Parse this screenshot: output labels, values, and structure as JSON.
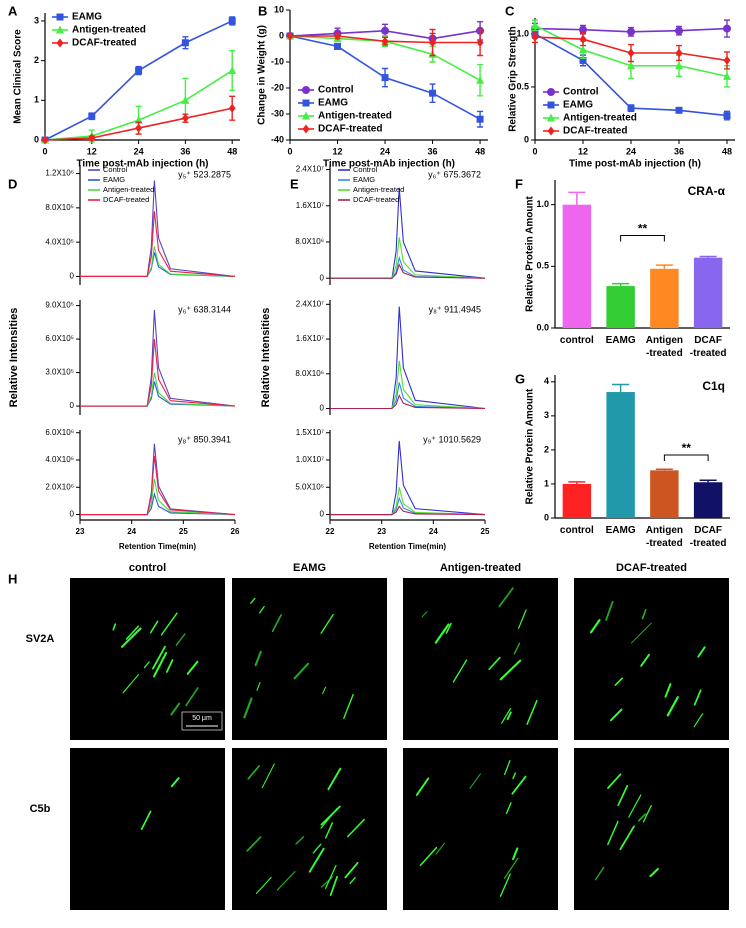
{
  "chart_data": [
    {
      "type": "line",
      "label": "A",
      "ylabel": "Mean Clinical Score",
      "xlabel": "Time post-mAb injection (h)",
      "x": [
        0,
        12,
        24,
        36,
        48
      ],
      "xlim": [
        0,
        50
      ],
      "xticks": [
        0,
        12,
        24,
        36,
        48
      ],
      "ylim": [
        0,
        3.2
      ],
      "yticks": [
        0,
        1,
        2,
        3
      ],
      "legend": "upper left",
      "series": [
        {
          "name": "EAMG",
          "color": "#3355dd",
          "marker": "square",
          "values": [
            0,
            0.6,
            1.75,
            2.45,
            3.0
          ],
          "errors": [
            0,
            0.08,
            0.1,
            0.15,
            0.1
          ]
        },
        {
          "name": "Antigen-treated",
          "color": "#44ee44",
          "marker": "triangle",
          "values": [
            0,
            0.1,
            0.5,
            1.0,
            1.75
          ],
          "errors": [
            0,
            0.15,
            0.35,
            0.55,
            0.5
          ]
        },
        {
          "name": "DCAF-treated",
          "color": "#ee2222",
          "marker": "diamond",
          "values": [
            0,
            0.05,
            0.3,
            0.55,
            0.8
          ],
          "errors": [
            0,
            0.05,
            0.15,
            0.1,
            0.3
          ]
        }
      ]
    },
    {
      "type": "line",
      "label": "B",
      "ylabel": "Change in Weight (g)",
      "xlabel": "Time post-mAb injection (h)",
      "x": [
        0,
        12,
        24,
        36,
        48
      ],
      "xlim": [
        0,
        50
      ],
      "xticks": [
        0,
        12,
        24,
        36,
        48
      ],
      "ylim": [
        -40,
        10
      ],
      "yticks": [
        -40,
        -30,
        -20,
        -10,
        0,
        10
      ],
      "legend": "lower left",
      "series": [
        {
          "name": "Control",
          "color": "#7733cc",
          "marker": "circle",
          "values": [
            0,
            1,
            2,
            -1,
            2
          ],
          "errors": [
            0,
            2,
            2.5,
            2,
            3.5
          ]
        },
        {
          "name": "EAMG",
          "color": "#3355dd",
          "marker": "square",
          "values": [
            0,
            -4,
            -16,
            -22,
            -32
          ],
          "errors": [
            0,
            1,
            3.5,
            3.5,
            3
          ]
        },
        {
          "name": "Antigen-treated",
          "color": "#44ee44",
          "marker": "triangle",
          "values": [
            0,
            -1,
            -2,
            -7,
            -17
          ],
          "errors": [
            0,
            1,
            2,
            3,
            6
          ]
        },
        {
          "name": "DCAF-treated",
          "color": "#ee2222",
          "marker": "diamond",
          "values": [
            0,
            0,
            -2,
            -2.5,
            -2.5
          ],
          "errors": [
            0,
            1,
            1.5,
            5,
            5
          ]
        }
      ]
    },
    {
      "type": "line",
      "label": "C",
      "ylabel": "Relative Grip Strength",
      "xlabel": "Time post-mAb injection (h)",
      "x": [
        0,
        12,
        24,
        36,
        48
      ],
      "xlim": [
        0,
        50
      ],
      "xticks": [
        0,
        12,
        24,
        36,
        48
      ],
      "ylim": [
        0,
        1.15
      ],
      "yticks": [
        0,
        0.5,
        {
          "value": 1,
          "label": "1.0"
        }
      ],
      "legend": "lower left",
      "series": [
        {
          "name": "Control",
          "color": "#7733cc",
          "marker": "circle",
          "values": [
            1.05,
            1.04,
            1.02,
            1.03,
            1.05
          ],
          "errors": [
            0.05,
            0.04,
            0.04,
            0.04,
            0.08
          ]
        },
        {
          "name": "EAMG",
          "color": "#3355dd",
          "marker": "square",
          "values": [
            1.0,
            0.75,
            0.3,
            0.28,
            0.23
          ],
          "errors": [
            0.04,
            0.05,
            0.03,
            0.02,
            0.04
          ]
        },
        {
          "name": "Antigen-treated",
          "color": "#44ee44",
          "marker": "triangle",
          "values": [
            1.08,
            0.85,
            0.7,
            0.7,
            0.6
          ],
          "errors": [
            0.05,
            0.08,
            0.12,
            0.1,
            0.1
          ]
        },
        {
          "name": "DCAF-treated",
          "color": "#ee2222",
          "marker": "diamond",
          "values": [
            0.97,
            0.95,
            0.82,
            0.82,
            0.75
          ],
          "errors": [
            0.05,
            0.06,
            0.08,
            0.07,
            0.08
          ]
        }
      ]
    },
    {
      "type": "line",
      "label": "D",
      "annotation": "y₅⁺ 523.2875",
      "x": [
        23,
        24.3,
        24.38,
        24.44,
        24.52,
        24.75,
        26
      ],
      "xlim": [
        23,
        26
      ],
      "ylim": [
        -100000,
        1300000
      ],
      "yticks": [
        0,
        {
          "value": 400000,
          "label": "4.0X10⁵"
        },
        {
          "value": 800000,
          "label": "8.0X10⁵"
        },
        {
          "value": 1200000,
          "label": "1.2X10⁶"
        }
      ],
      "legend": "upper left",
      "series": [
        {
          "name": "Control",
          "color": "#6040c0",
          "values": [
            0,
            0,
            336000,
            1120000,
            448000,
            89600,
            0
          ]
        },
        {
          "name": "EAMG",
          "color": "#3355dd",
          "values": [
            0,
            0,
            84000,
            280000,
            112000,
            22400,
            0
          ]
        },
        {
          "name": "Antigen-treated",
          "color": "#44dd44",
          "values": [
            0,
            0,
            105000,
            350000,
            140000,
            28000,
            0
          ]
        },
        {
          "name": "DCAF-treated",
          "color": "#ee2244",
          "values": [
            0,
            0,
            228000,
            760000,
            304000,
            60800,
            0
          ]
        }
      ]
    },
    {
      "type": "line",
      "ylabel": "Relative Intensities",
      "annotation": "y₆⁺ 638.3144",
      "x": [
        23,
        24.3,
        24.38,
        24.44,
        24.52,
        24.75,
        26
      ],
      "xlim": [
        23,
        26
      ],
      "ylim": [
        -80000,
        950000
      ],
      "yticks": [
        0,
        {
          "value": 300000,
          "label": "3.0X10⁵"
        },
        {
          "value": 600000,
          "label": "6.0X10⁵"
        },
        {
          "value": 900000,
          "label": "9.0X10⁵"
        }
      ],
      "series": [
        {
          "color": "#6040c0",
          "values": [
            0,
            0,
            258000,
            860000,
            344000,
            68800,
            0
          ]
        },
        {
          "color": "#3355dd",
          "values": [
            0,
            0,
            66000,
            220000,
            88000,
            17600,
            0
          ]
        },
        {
          "color": "#44dd44",
          "values": [
            0,
            0,
            90000,
            300000,
            120000,
            24000,
            0
          ]
        },
        {
          "color": "#ee2244",
          "values": [
            0,
            0,
            180000,
            600000,
            240000,
            48000,
            0
          ]
        }
      ]
    },
    {
      "type": "line",
      "xlabel": "Retention Time(min)",
      "annotation": "y₈⁺ 850.3941",
      "x": [
        23,
        24.3,
        24.38,
        24.44,
        24.52,
        24.75,
        26
      ],
      "xlim": [
        23,
        26
      ],
      "xticks": [
        23,
        24,
        25,
        26
      ],
      "ylim": [
        -400000,
        6200000
      ],
      "yticks": [
        0,
        {
          "value": 2000000,
          "label": "2.0X10⁶"
        },
        {
          "value": 4000000,
          "label": "4.0X10⁶"
        },
        {
          "value": 6000000,
          "label": "6.0X10⁶"
        }
      ],
      "series": [
        {
          "color": "#6040c0",
          "values": [
            0,
            0,
            1560000,
            5200000,
            2080000,
            416000,
            0
          ]
        },
        {
          "color": "#3355dd",
          "values": [
            0,
            0,
            450000,
            1500000,
            600000,
            120000,
            0
          ]
        },
        {
          "color": "#44dd44",
          "values": [
            0,
            0,
            780000,
            2600000,
            1040000,
            208000,
            0
          ]
        },
        {
          "color": "#ee2244",
          "values": [
            0,
            0,
            1290000,
            4300000,
            1720000,
            344000,
            0
          ]
        }
      ]
    },
    {
      "type": "line",
      "label": "E",
      "annotation": "y₆⁺ 675.3672",
      "x": [
        22,
        23.2,
        23.28,
        23.34,
        23.42,
        23.65,
        25
      ],
      "xlim": [
        22,
        25
      ],
      "ylim": [
        -1500000,
        25000000
      ],
      "yticks": [
        0,
        {
          "value": 8000000,
          "label": "8.0X10⁶"
        },
        {
          "value": 16000000,
          "label": "1.6X10⁷"
        },
        {
          "value": 24000000,
          "label": "2.4X10⁷"
        }
      ],
      "legend": "upper left",
      "series": [
        {
          "name": "Control",
          "color": "#3030cc",
          "values": [
            0,
            0,
            6000000,
            20000000,
            8000000,
            1600000,
            0
          ]
        },
        {
          "name": "EAMG",
          "color": "#3388ee",
          "values": [
            0,
            0,
            1350000,
            4500000,
            1800000,
            360000,
            0
          ]
        },
        {
          "name": "Antigen-treated",
          "color": "#55dd33",
          "values": [
            0,
            0,
            2700000,
            9000000,
            3600000,
            720000,
            0
          ]
        },
        {
          "name": "DCAF-treated",
          "color": "#aa2255",
          "values": [
            0,
            0,
            900000,
            3000000,
            1200000,
            240000,
            0
          ]
        }
      ]
    },
    {
      "type": "line",
      "ylabel": "Relative Intensities",
      "annotation": "y₈⁺ 911.4945",
      "x": [
        22,
        23.2,
        23.28,
        23.34,
        23.42,
        23.65,
        25
      ],
      "xlim": [
        22,
        25
      ],
      "ylim": [
        -1500000,
        25000000
      ],
      "yticks": [
        0,
        {
          "value": 8000000,
          "label": "8.0X10⁶"
        },
        {
          "value": 16000000,
          "label": "1.6X10⁷"
        },
        {
          "value": 24000000,
          "label": "2.4X10⁷"
        }
      ],
      "series": [
        {
          "color": "#3030cc",
          "values": [
            0,
            0,
            7050000,
            23500000,
            9400000,
            1880000,
            0
          ]
        },
        {
          "color": "#3388ee",
          "values": [
            0,
            0,
            1800000,
            6000000,
            2400000,
            480000,
            0
          ]
        },
        {
          "color": "#55dd33",
          "values": [
            0,
            0,
            3300000,
            11000000,
            4400000,
            880000,
            0
          ]
        },
        {
          "color": "#aa2255",
          "values": [
            0,
            0,
            900000,
            3000000,
            1200000,
            240000,
            0
          ]
        }
      ]
    },
    {
      "type": "line",
      "xlabel": "Retention Time(min)",
      "annotation": "y₉⁺ 1010.5629",
      "x": [
        22,
        23.2,
        23.28,
        23.34,
        23.42,
        23.65,
        25
      ],
      "xlim": [
        22,
        25
      ],
      "xticks": [
        22,
        23,
        24,
        25
      ],
      "ylim": [
        -1000000,
        15500000
      ],
      "yticks": [
        0,
        {
          "value": 5000000,
          "label": "5.0X10⁶"
        },
        {
          "value": 10000000,
          "label": "1.0X10⁷"
        },
        {
          "value": 15000000,
          "label": "1.5X10⁷"
        }
      ],
      "series": [
        {
          "color": "#3030cc",
          "values": [
            0,
            0,
            4050000,
            13500000,
            5400000,
            1080000,
            0
          ]
        },
        {
          "color": "#3388ee",
          "values": [
            0,
            0,
            900000,
            3000000,
            1200000,
            240000,
            0
          ]
        },
        {
          "color": "#55dd33",
          "values": [
            0,
            0,
            1500000,
            5000000,
            2000000,
            400000,
            0
          ]
        },
        {
          "color": "#aa2255",
          "values": [
            0,
            0,
            450000,
            1500000,
            600000,
            120000,
            0
          ]
        }
      ]
    },
    {
      "type": "bar",
      "label": "F",
      "title": "CRA-α",
      "ylabel": "Relative Protein Amount",
      "annotation": "**",
      "categories": [
        "control",
        "EAMG",
        "Antigen\n-treated",
        "DCAF\n-treated"
      ],
      "values": [
        1.0,
        0.34,
        0.48,
        0.57
      ],
      "errors": [
        0.1,
        0.02,
        0.03,
        0.01
      ],
      "colors": [
        "#ee66ee",
        "#33cc33",
        "#ff8822",
        "#8866ee"
      ],
      "ylim": [
        0,
        1.2
      ],
      "yticks": [
        {
          "value": 0,
          "label": "0.0"
        },
        0.5,
        {
          "value": 1,
          "label": "1.0"
        }
      ]
    },
    {
      "type": "bar",
      "label": "G",
      "title": "C1q",
      "ylabel": "Relative Protein Amount",
      "annotation": "**",
      "categories": [
        "control",
        "EAMG",
        "Antigen\n-treated",
        "DCAF\n-treated"
      ],
      "values": [
        1.0,
        3.7,
        1.4,
        1.05
      ],
      "errors": [
        0.06,
        0.22,
        0.03,
        0.06
      ],
      "colors": [
        "#ff2222",
        "#2299aa",
        "#cc5522",
        "#111166"
      ],
      "ylim": [
        0,
        4.2
      ],
      "yticks": [
        0,
        1,
        2,
        3,
        4
      ]
    }
  ],
  "images": {
    "label": "H",
    "columns": [
      "control",
      "EAMG",
      "Antigen-treated",
      "DCAF-treated"
    ],
    "rows": [
      "SV2A",
      "C5b"
    ],
    "scale_bar": "50 μm"
  }
}
